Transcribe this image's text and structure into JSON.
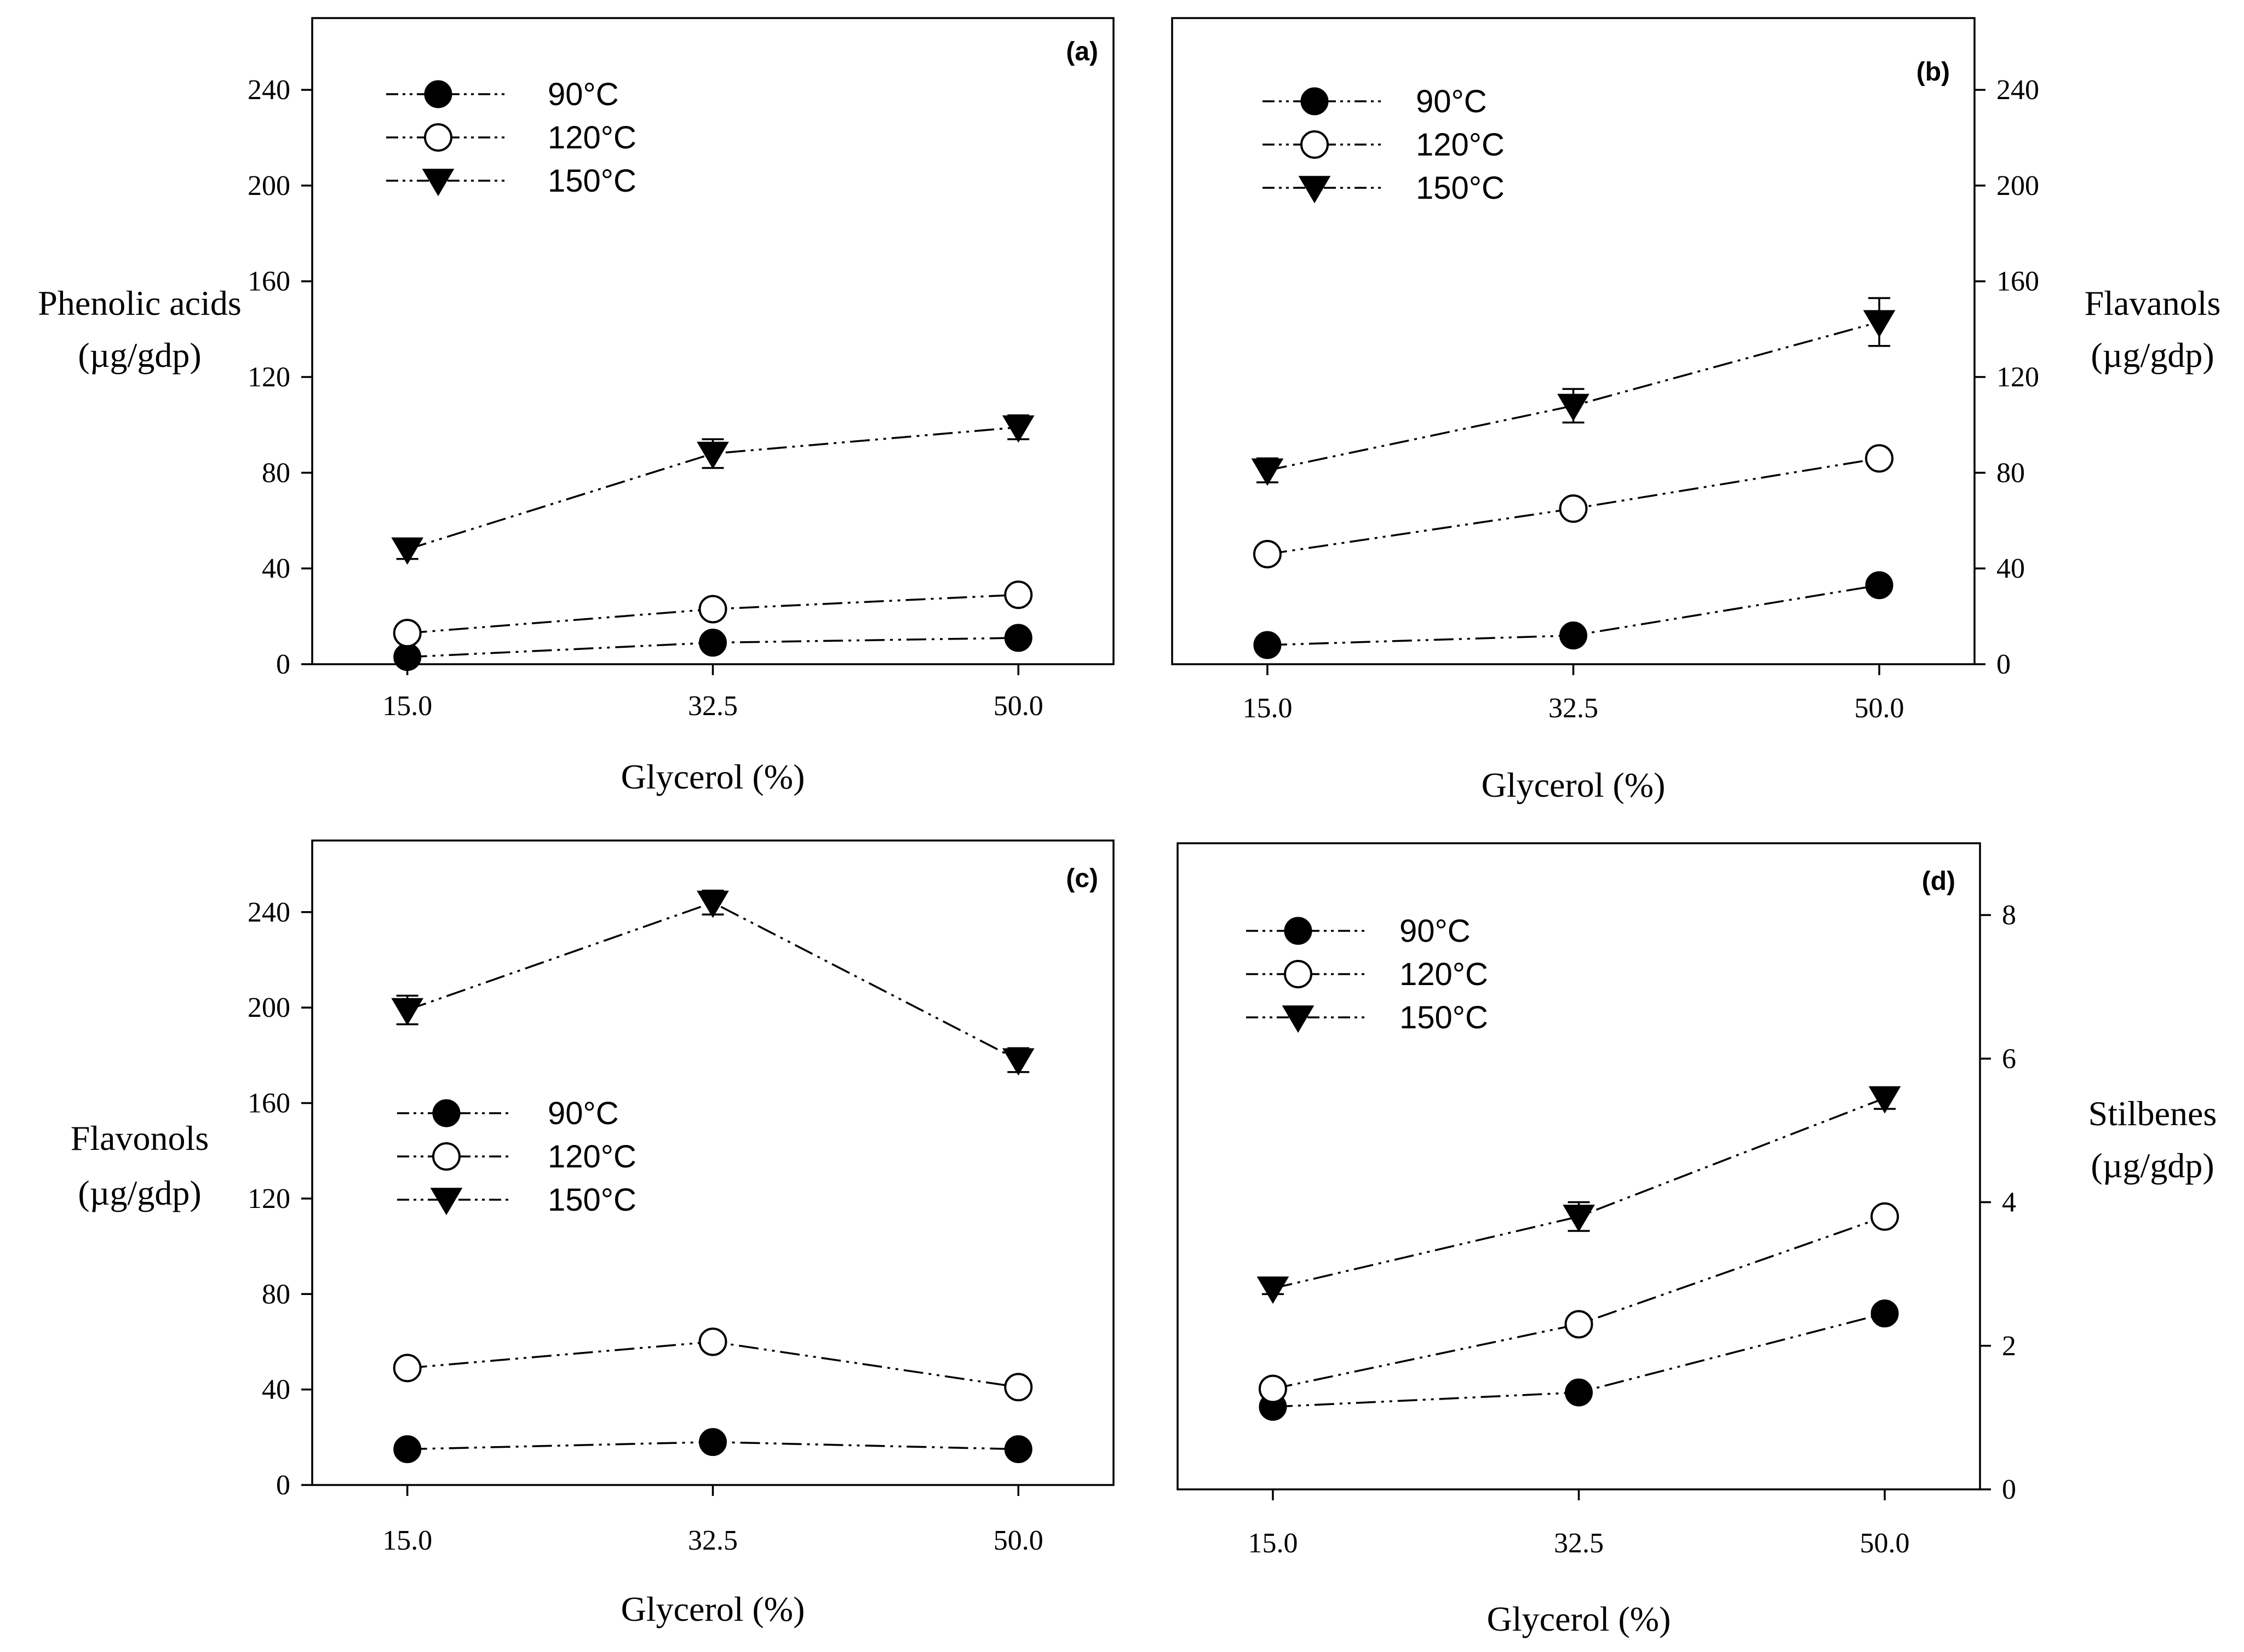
{
  "chart_data": [
    {
      "type": "line",
      "panel_label": "(a)",
      "title": "",
      "xlabel": "Glycerol (%)",
      "ylabel_lines": [
        "Phenolic acids",
        "(µg/gdp)"
      ],
      "y_axis_side": "left",
      "x": [
        15.0,
        32.5,
        50.0
      ],
      "x_tick_labels": [
        "15.0",
        "32.5",
        "50.0"
      ],
      "ylim": [
        0,
        270
      ],
      "y_ticks": [
        0,
        40,
        80,
        120,
        160,
        200,
        240
      ],
      "y_tick_labels": [
        "0",
        "40",
        "80",
        "120",
        "160",
        "200",
        "240"
      ],
      "legend": {
        "placement": "top-left",
        "entries": [
          "90°C",
          "120°C",
          "150°C"
        ]
      },
      "series": [
        {
          "name": "90°C",
          "marker": "filled-circle",
          "values": [
            3,
            9,
            11
          ],
          "errors": [
            0,
            0,
            0
          ]
        },
        {
          "name": "120°C",
          "marker": "open-circle",
          "values": [
            13,
            23,
            29
          ],
          "errors": [
            0,
            0,
            0
          ]
        },
        {
          "name": "150°C",
          "marker": "filled-triangle-down",
          "values": [
            48,
            88,
            99
          ],
          "errors": [
            4,
            6,
            5
          ]
        }
      ]
    },
    {
      "type": "line",
      "panel_label": "(b)",
      "title": "",
      "xlabel": "Glycerol (%)",
      "ylabel_lines": [
        "Flavanols",
        "(µg/gdp)"
      ],
      "y_axis_side": "right",
      "x": [
        15.0,
        32.5,
        50.0
      ],
      "x_tick_labels": [
        "15.0",
        "32.5",
        "50.0"
      ],
      "ylim": [
        0,
        270
      ],
      "y_ticks": [
        0,
        40,
        80,
        120,
        160,
        200,
        240
      ],
      "y_tick_labels": [
        "0",
        "40",
        "80",
        "120",
        "160",
        "200",
        "240"
      ],
      "legend": {
        "placement": "top-left",
        "entries": [
          "90°C",
          "120°C",
          "150°C"
        ]
      },
      "series": [
        {
          "name": "90°C",
          "marker": "filled-circle",
          "values": [
            8,
            12,
            33
          ],
          "errors": [
            0,
            0,
            0
          ]
        },
        {
          "name": "120°C",
          "marker": "open-circle",
          "values": [
            46,
            65,
            86
          ],
          "errors": [
            0,
            0,
            0
          ]
        },
        {
          "name": "150°C",
          "marker": "filled-triangle-down",
          "values": [
            81,
            108,
            143
          ],
          "errors": [
            5,
            7,
            10
          ]
        }
      ]
    },
    {
      "type": "line",
      "panel_label": "(c)",
      "title": "",
      "xlabel": "Glycerol (%)",
      "ylabel_lines": [
        "Flavonols",
        "(µg/gdp)"
      ],
      "y_axis_side": "left",
      "x": [
        15.0,
        32.5,
        50.0
      ],
      "x_tick_labels": [
        "15.0",
        "32.5",
        "50.0"
      ],
      "ylim": [
        0,
        270
      ],
      "y_ticks": [
        0,
        40,
        80,
        120,
        160,
        200,
        240
      ],
      "y_tick_labels": [
        "0",
        "40",
        "80",
        "120",
        "160",
        "200",
        "240"
      ],
      "legend": {
        "placement": "center-left",
        "entries": [
          "90°C",
          "120°C",
          "150°C"
        ]
      },
      "series": [
        {
          "name": "90°C",
          "marker": "filled-circle",
          "values": [
            15,
            18,
            15
          ],
          "errors": [
            0,
            0,
            0
          ]
        },
        {
          "name": "120°C",
          "marker": "open-circle",
          "values": [
            49,
            60,
            41
          ],
          "errors": [
            0,
            0,
            0
          ]
        },
        {
          "name": "150°C",
          "marker": "filled-triangle-down",
          "values": [
            199,
            244,
            178
          ],
          "errors": [
            6,
            5,
            5
          ]
        }
      ]
    },
    {
      "type": "line",
      "panel_label": "(d)",
      "title": "",
      "xlabel": "Glycerol (%)",
      "ylabel_lines": [
        "Stilbenes",
        "(µg/gdp)"
      ],
      "y_axis_side": "right",
      "x": [
        15.0,
        32.5,
        50.0
      ],
      "x_tick_labels": [
        "15.0",
        "32.5",
        "50.0"
      ],
      "ylim": [
        0,
        9
      ],
      "y_ticks": [
        0,
        2,
        4,
        6,
        8
      ],
      "y_tick_labels": [
        "0",
        "2",
        "4",
        "6",
        "8"
      ],
      "legend": {
        "placement": "top-left",
        "entries": [
          "90°C",
          "120°C",
          "150°C"
        ]
      },
      "series": [
        {
          "name": "90°C",
          "marker": "filled-circle",
          "values": [
            1.15,
            1.35,
            2.45
          ],
          "errors": [
            0,
            0,
            0
          ]
        },
        {
          "name": "120°C",
          "marker": "open-circle",
          "values": [
            1.4,
            2.3,
            3.8
          ],
          "errors": [
            0,
            0,
            0
          ]
        },
        {
          "name": "150°C",
          "marker": "filled-triangle-down",
          "values": [
            2.8,
            3.8,
            5.45
          ],
          "errors": [
            0.08,
            0.2,
            0.15
          ]
        }
      ]
    }
  ]
}
